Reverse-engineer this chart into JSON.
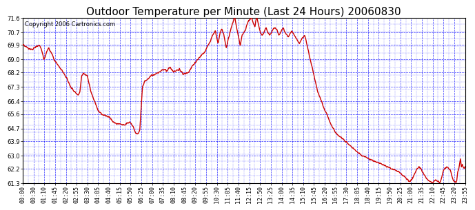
{
  "title": "Outdoor Temperature per Minute (Last 24 Hours) 20060830",
  "copyright_text": "Copyright 2006 Cartronics.com",
  "background_color": "#ffffff",
  "plot_bg_color": "#ffffff",
  "grid_color": "#0000ff",
  "line_color": "#cc0000",
  "line_width": 1.0,
  "ylim": [
    61.3,
    71.6
  ],
  "yticks": [
    61.3,
    62.2,
    63.0,
    63.9,
    64.7,
    65.6,
    66.4,
    67.3,
    68.2,
    69.0,
    69.9,
    70.7,
    71.6
  ],
  "x_tick_labels": [
    "00:00",
    "00:30",
    "01:10",
    "01:45",
    "02:20",
    "02:55",
    "03:30",
    "04:05",
    "04:40",
    "05:15",
    "05:50",
    "06:25",
    "07:00",
    "07:35",
    "08:10",
    "08:45",
    "09:20",
    "09:55",
    "10:30",
    "11:05",
    "11:40",
    "12:15",
    "12:50",
    "13:25",
    "14:00",
    "14:35",
    "15:10",
    "15:45",
    "16:20",
    "16:55",
    "17:30",
    "18:05",
    "18:40",
    "19:15",
    "19:50",
    "20:25",
    "21:00",
    "21:35",
    "22:10",
    "22:45",
    "23:20",
    "23:55"
  ],
  "title_fontsize": 11,
  "copyright_fontsize": 6,
  "tick_fontsize": 6,
  "waypoints": [
    [
      0.0,
      69.9
    ],
    [
      0.3,
      69.7
    ],
    [
      0.5,
      69.6
    ],
    [
      0.7,
      69.8
    ],
    [
      0.9,
      69.9
    ],
    [
      1.0,
      69.7
    ],
    [
      1.1,
      69.3
    ],
    [
      1.15,
      69.0
    ],
    [
      1.2,
      69.1
    ],
    [
      1.3,
      69.5
    ],
    [
      1.4,
      69.7
    ],
    [
      1.5,
      69.5
    ],
    [
      1.6,
      69.3
    ],
    [
      1.7,
      69.0
    ],
    [
      1.8,
      68.8
    ],
    [
      2.0,
      68.5
    ],
    [
      2.2,
      68.2
    ],
    [
      2.4,
      67.8
    ],
    [
      2.6,
      67.3
    ],
    [
      2.8,
      67.0
    ],
    [
      3.0,
      66.8
    ],
    [
      3.1,
      67.0
    ],
    [
      3.2,
      68.0
    ],
    [
      3.3,
      68.1
    ],
    [
      3.5,
      68.0
    ],
    [
      3.6,
      67.5
    ],
    [
      3.7,
      67.0
    ],
    [
      3.9,
      66.4
    ],
    [
      4.1,
      65.8
    ],
    [
      4.3,
      65.6
    ],
    [
      4.5,
      65.5
    ],
    [
      4.7,
      65.4
    ],
    [
      4.9,
      65.1
    ],
    [
      5.1,
      65.0
    ],
    [
      5.3,
      65.0
    ],
    [
      5.5,
      64.9
    ],
    [
      5.6,
      65.0
    ],
    [
      5.8,
      65.1
    ],
    [
      5.9,
      65.0
    ],
    [
      6.0,
      64.8
    ],
    [
      6.05,
      64.6
    ],
    [
      6.1,
      64.5
    ],
    [
      6.15,
      64.4
    ],
    [
      6.25,
      64.35
    ],
    [
      6.35,
      64.6
    ],
    [
      6.5,
      67.3
    ],
    [
      6.6,
      67.6
    ],
    [
      6.7,
      67.7
    ],
    [
      6.8,
      67.8
    ],
    [
      7.0,
      68.0
    ],
    [
      7.2,
      68.1
    ],
    [
      7.4,
      68.2
    ],
    [
      7.5,
      68.3
    ],
    [
      7.7,
      68.4
    ],
    [
      7.8,
      68.3
    ],
    [
      8.0,
      68.5
    ],
    [
      8.2,
      68.2
    ],
    [
      8.3,
      68.3
    ],
    [
      8.5,
      68.4
    ],
    [
      8.7,
      68.1
    ],
    [
      9.0,
      68.2
    ],
    [
      9.2,
      68.6
    ],
    [
      9.5,
      69.0
    ],
    [
      9.7,
      69.3
    ],
    [
      9.9,
      69.5
    ],
    [
      10.0,
      69.8
    ],
    [
      10.2,
      70.2
    ],
    [
      10.3,
      70.5
    ],
    [
      10.4,
      70.7
    ],
    [
      10.45,
      70.8
    ],
    [
      10.5,
      70.5
    ],
    [
      10.6,
      70.0
    ],
    [
      10.65,
      70.3
    ],
    [
      10.7,
      70.6
    ],
    [
      10.75,
      70.8
    ],
    [
      10.8,
      70.9
    ],
    [
      10.9,
      70.6
    ],
    [
      10.95,
      70.3
    ],
    [
      11.0,
      70.0
    ],
    [
      11.05,
      69.7
    ],
    [
      11.1,
      70.0
    ],
    [
      11.15,
      70.3
    ],
    [
      11.2,
      70.5
    ],
    [
      11.25,
      70.7
    ],
    [
      11.3,
      70.9
    ],
    [
      11.35,
      71.1
    ],
    [
      11.4,
      71.3
    ],
    [
      11.45,
      71.5
    ],
    [
      11.5,
      71.6
    ],
    [
      11.55,
      71.4
    ],
    [
      11.6,
      71.0
    ],
    [
      11.7,
      70.5
    ],
    [
      11.8,
      69.8
    ],
    [
      11.85,
      70.2
    ],
    [
      11.9,
      70.5
    ],
    [
      12.0,
      70.7
    ],
    [
      12.1,
      70.9
    ],
    [
      12.15,
      71.1
    ],
    [
      12.2,
      71.3
    ],
    [
      12.3,
      71.5
    ],
    [
      12.4,
      71.6
    ],
    [
      12.45,
      71.5
    ],
    [
      12.5,
      71.3
    ],
    [
      12.6,
      71.0
    ],
    [
      12.65,
      71.5
    ],
    [
      12.7,
      71.6
    ],
    [
      12.75,
      71.4
    ],
    [
      12.8,
      71.1
    ],
    [
      12.9,
      70.7
    ],
    [
      13.0,
      70.5
    ],
    [
      13.1,
      70.7
    ],
    [
      13.15,
      70.9
    ],
    [
      13.2,
      71.0
    ],
    [
      13.3,
      70.7
    ],
    [
      13.4,
      70.5
    ],
    [
      13.5,
      70.7
    ],
    [
      13.6,
      70.9
    ],
    [
      13.7,
      71.0
    ],
    [
      13.8,
      70.8
    ],
    [
      13.9,
      70.5
    ],
    [
      14.0,
      70.7
    ],
    [
      14.1,
      70.9
    ],
    [
      14.15,
      71.0
    ],
    [
      14.2,
      70.8
    ],
    [
      14.3,
      70.6
    ],
    [
      14.4,
      70.4
    ],
    [
      14.5,
      70.6
    ],
    [
      14.6,
      70.8
    ],
    [
      14.7,
      70.6
    ],
    [
      14.8,
      70.4
    ],
    [
      14.9,
      70.2
    ],
    [
      15.0,
      70.0
    ],
    [
      15.1,
      70.2
    ],
    [
      15.2,
      70.4
    ],
    [
      15.3,
      70.5
    ],
    [
      15.35,
      70.3
    ],
    [
      15.4,
      70.0
    ],
    [
      15.5,
      69.5
    ],
    [
      15.6,
      69.0
    ],
    [
      15.7,
      68.5
    ],
    [
      15.8,
      68.0
    ],
    [
      15.9,
      67.5
    ],
    [
      16.0,
      67.0
    ],
    [
      16.1,
      66.7
    ],
    [
      16.2,
      66.4
    ],
    [
      16.3,
      66.1
    ],
    [
      16.4,
      65.8
    ],
    [
      16.5,
      65.6
    ],
    [
      16.6,
      65.3
    ],
    [
      16.7,
      65.0
    ],
    [
      16.8,
      64.8
    ],
    [
      16.9,
      64.6
    ],
    [
      17.0,
      64.4
    ],
    [
      17.2,
      64.2
    ],
    [
      17.4,
      64.0
    ],
    [
      17.6,
      63.8
    ],
    [
      17.8,
      63.6
    ],
    [
      18.0,
      63.4
    ],
    [
      18.2,
      63.2
    ],
    [
      18.4,
      63.0
    ],
    [
      18.6,
      62.9
    ],
    [
      18.8,
      62.8
    ],
    [
      19.0,
      62.7
    ],
    [
      19.2,
      62.6
    ],
    [
      19.4,
      62.5
    ],
    [
      19.6,
      62.4
    ],
    [
      19.8,
      62.3
    ],
    [
      20.0,
      62.2
    ],
    [
      20.2,
      62.1
    ],
    [
      20.4,
      62.0
    ],
    [
      20.5,
      61.9
    ],
    [
      20.6,
      61.8
    ],
    [
      20.7,
      61.7
    ],
    [
      20.8,
      61.6
    ],
    [
      20.9,
      61.5
    ],
    [
      21.0,
      61.4
    ],
    [
      21.1,
      61.5
    ],
    [
      21.2,
      61.7
    ],
    [
      21.3,
      62.0
    ],
    [
      21.4,
      62.2
    ],
    [
      21.5,
      62.3
    ],
    [
      21.6,
      62.2
    ],
    [
      21.7,
      62.0
    ],
    [
      21.8,
      61.8
    ],
    [
      21.9,
      61.6
    ],
    [
      22.0,
      61.5
    ],
    [
      22.1,
      61.4
    ],
    [
      22.2,
      61.3
    ],
    [
      22.3,
      61.4
    ],
    [
      22.4,
      61.5
    ],
    [
      22.5,
      61.4
    ],
    [
      22.6,
      61.3
    ],
    [
      22.65,
      61.4
    ],
    [
      22.7,
      61.5
    ],
    [
      22.8,
      62.0
    ],
    [
      22.9,
      62.2
    ],
    [
      23.0,
      62.3
    ],
    [
      23.1,
      62.2
    ],
    [
      23.2,
      62.1
    ],
    [
      23.25,
      61.9
    ],
    [
      23.3,
      61.7
    ],
    [
      23.35,
      61.5
    ],
    [
      23.4,
      61.4
    ],
    [
      23.5,
      61.3
    ],
    [
      23.55,
      61.5
    ],
    [
      23.6,
      62.0
    ],
    [
      23.65,
      62.2
    ],
    [
      23.7,
      62.5
    ],
    [
      23.75,
      62.8
    ],
    [
      23.8,
      62.3
    ],
    [
      23.85,
      62.5
    ],
    [
      23.9,
      62.3
    ],
    [
      23.95,
      62.2
    ],
    [
      24.0,
      62.3
    ]
  ]
}
